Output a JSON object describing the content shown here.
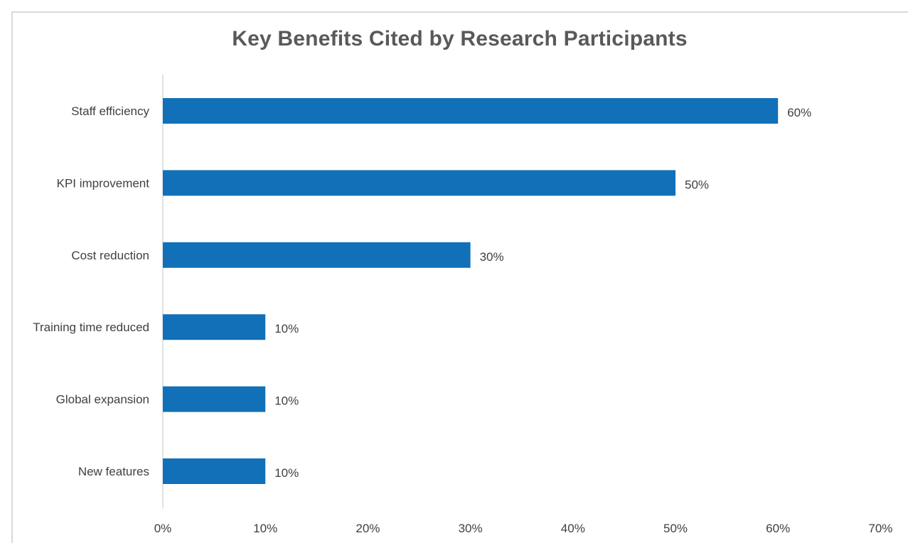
{
  "chart_data": {
    "type": "bar",
    "orientation": "horizontal",
    "title": "Key Benefits Cited by Research Participants",
    "xlabel": "",
    "ylabel": "",
    "categories": [
      "Staff efficiency",
      "KPI improvement",
      "Cost reduction",
      "Training time reduced",
      "Global expansion",
      "New features"
    ],
    "values": [
      60,
      50,
      30,
      10,
      10,
      10
    ],
    "value_labels": [
      "60%",
      "50%",
      "30%",
      "10%",
      "10%",
      "10%"
    ],
    "xlim": [
      0,
      70
    ],
    "ticks": [
      0,
      10,
      20,
      30,
      40,
      50,
      60,
      70
    ],
    "tick_labels": [
      "0%",
      "10%",
      "20%",
      "30%",
      "40%",
      "50%",
      "60%",
      "70%"
    ],
    "grid": false,
    "legend": "none",
    "bar_color": "#1170b8"
  }
}
